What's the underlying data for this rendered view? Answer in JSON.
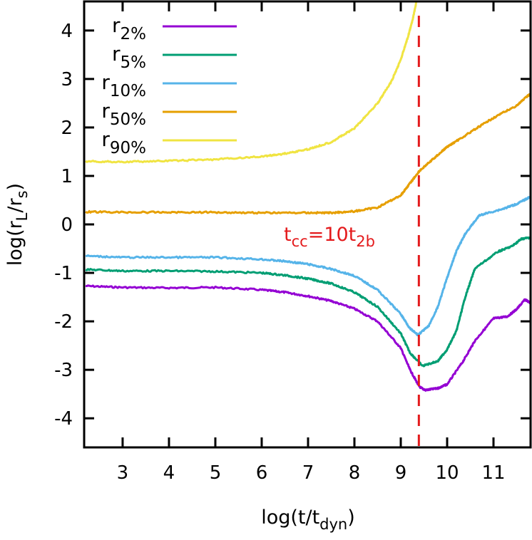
{
  "chart_data": {
    "type": "line",
    "xlabel": {
      "base": "log(t/t",
      "sub": "dyn",
      "tail": ")"
    },
    "ylabel": {
      "p1": "log(r",
      "sub1": "L",
      "p2": "/r",
      "sub2": "s",
      "tail": ")"
    },
    "xlim": [
      2.17,
      11.8
    ],
    "ylim": [
      -4.6,
      4.6
    ],
    "xticks": [
      3,
      4,
      5,
      6,
      7,
      8,
      9,
      10,
      11
    ],
    "yticks": [
      4,
      3,
      2,
      1,
      0,
      -1,
      -2,
      -3,
      -4
    ],
    "grid": false,
    "legend_position": "top-left",
    "annotation": {
      "base1": "t",
      "sub1": "cc",
      "mid": "=10t",
      "sub2": "2b",
      "x": 9.39,
      "color": "#e41a1c"
    },
    "series": [
      {
        "name": {
          "base": "r",
          "sub": "2%"
        },
        "color": "#9400d3",
        "x": [
          2.2,
          3,
          4,
          5,
          6,
          6.5,
          7,
          7.5,
          8,
          8.5,
          9,
          9.2,
          9.4,
          9.53,
          9.8,
          10,
          10.34,
          10.6,
          11,
          11.3,
          11.5,
          11.68,
          11.8
        ],
        "y": [
          -1.27,
          -1.3,
          -1.31,
          -1.3,
          -1.35,
          -1.4,
          -1.48,
          -1.58,
          -1.74,
          -2.0,
          -2.55,
          -3.0,
          -3.35,
          -3.42,
          -3.38,
          -3.3,
          -2.83,
          -2.4,
          -1.94,
          -1.9,
          -1.75,
          -1.55,
          -1.62
        ]
      },
      {
        "name": {
          "base": "r",
          "sub": "5%"
        },
        "color": "#009e73",
        "x": [
          2.2,
          3,
          4,
          5,
          6,
          6.5,
          7,
          7.5,
          8,
          8.5,
          9,
          9.2,
          9.47,
          9.8,
          10,
          10.2,
          10.39,
          10.6,
          11.1,
          11.4,
          11.6,
          11.8
        ],
        "y": [
          -0.93,
          -0.96,
          -0.96,
          -0.97,
          -1.0,
          -1.05,
          -1.12,
          -1.22,
          -1.4,
          -1.7,
          -2.25,
          -2.65,
          -2.92,
          -2.82,
          -2.58,
          -2.2,
          -1.5,
          -0.91,
          -0.56,
          -0.45,
          -0.3,
          -0.27
        ]
      },
      {
        "name": {
          "base": "r",
          "sub": "10%"
        },
        "color": "#56b4e9",
        "x": [
          2.2,
          3,
          4,
          5,
          6,
          6.5,
          7,
          7.5,
          8,
          8.5,
          9,
          9.2,
          9.37,
          9.6,
          9.8,
          10,
          10.2,
          10.4,
          10.7,
          11.2,
          11.5,
          11.8
        ],
        "y": [
          -0.65,
          -0.68,
          -0.68,
          -0.68,
          -0.72,
          -0.76,
          -0.82,
          -0.92,
          -1.06,
          -1.35,
          -1.85,
          -2.15,
          -2.28,
          -2.1,
          -1.7,
          -1.1,
          -0.55,
          -0.18,
          0.19,
          0.32,
          0.42,
          0.57
        ]
      },
      {
        "name": {
          "base": "r",
          "sub": "50%"
        },
        "color": "#e69f00",
        "x": [
          2.2,
          3,
          4,
          5,
          6,
          7,
          7.5,
          8,
          8.5,
          9,
          9.2,
          9.4,
          9.7,
          10,
          10.5,
          11,
          11.5,
          11.8
        ],
        "y": [
          0.26,
          0.25,
          0.25,
          0.25,
          0.24,
          0.24,
          0.24,
          0.27,
          0.35,
          0.6,
          0.85,
          1.1,
          1.35,
          1.6,
          1.9,
          2.2,
          2.45,
          2.7
        ]
      },
      {
        "name": {
          "base": "r",
          "sub": "90%"
        },
        "color": "#f0e442",
        "x": [
          2.2,
          3,
          4,
          5,
          6,
          6.5,
          7,
          7.5,
          8,
          8.5,
          8.8,
          9,
          9.15,
          9.25,
          9.34
        ],
        "y": [
          1.3,
          1.29,
          1.31,
          1.34,
          1.4,
          1.46,
          1.55,
          1.7,
          1.98,
          2.5,
          2.95,
          3.4,
          3.85,
          4.2,
          4.6
        ]
      }
    ]
  }
}
